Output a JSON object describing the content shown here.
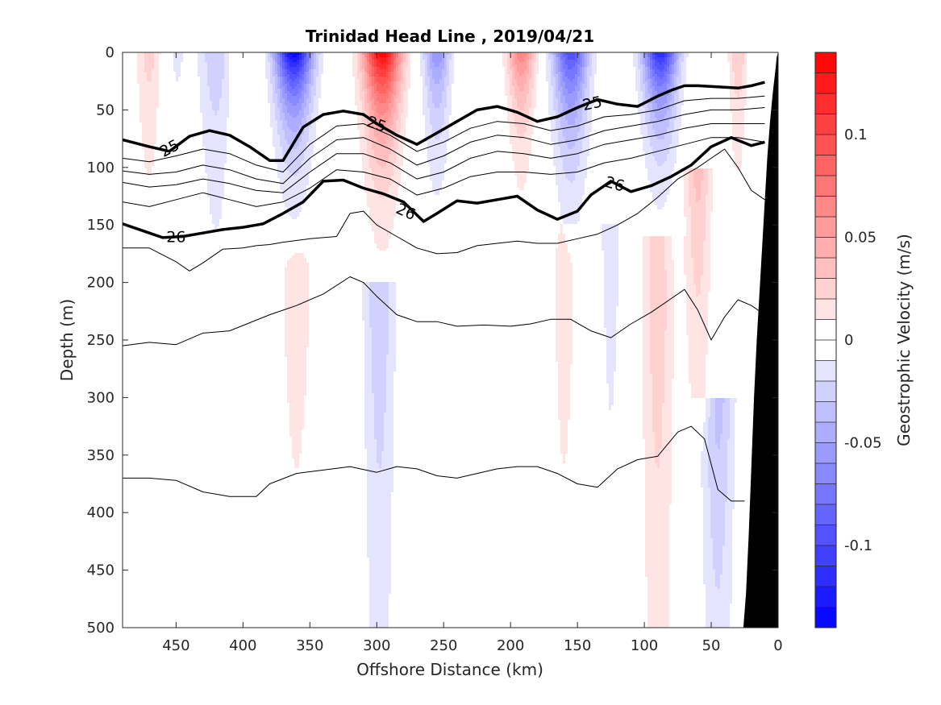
{
  "chart_data": {
    "type": "heatmap",
    "title": "Trinidad Head Line , 2019/04/21",
    "xlabel": "Offshore Distance (km)",
    "ylabel": "Depth (m)",
    "colorbar_label": "Geostrophic Velocity (m/s)",
    "xlim": [
      490,
      0
    ],
    "ylim": [
      0,
      500
    ],
    "x_reversed": true,
    "y_reversed": true,
    "x_ticks": [
      450,
      400,
      350,
      300,
      250,
      200,
      150,
      100,
      50,
      0
    ],
    "y_ticks": [
      0,
      50,
      100,
      150,
      200,
      250,
      300,
      350,
      400,
      450,
      500
    ],
    "colorbar_ticks": [
      {
        "value": 0.1,
        "label": "0.1"
      },
      {
        "value": 0.05,
        "label": "0.05"
      },
      {
        "value": 0,
        "label": "0"
      },
      {
        "value": -0.05,
        "label": "-0.05"
      },
      {
        "value": -0.1,
        "label": "-0.1"
      }
    ],
    "colorbar_range": [
      -0.14,
      0.14
    ],
    "colorbar_levels": 28,
    "colors": {
      "positive": "#ff0000",
      "negative": "#0000ff",
      "zero": "#ffffff",
      "bathymetry": "#000000"
    },
    "velocity_bands": [
      {
        "x_km": 470,
        "width_km": 10,
        "amp": 0.025,
        "z_top": 0,
        "z_bot": 130,
        "decay": 120
      },
      {
        "x_km": 450,
        "width_km": 10,
        "amp": -0.012,
        "z_top": 0,
        "z_bot": 150,
        "decay": 150
      },
      {
        "x_km": 480,
        "width_km": 12,
        "amp": -0.008,
        "z_top": 150,
        "z_bot": 500,
        "decay": 600
      },
      {
        "x_km": 420,
        "width_km": 13,
        "amp": -0.03,
        "z_top": 0,
        "z_bot": 260,
        "decay": 140
      },
      {
        "x_km": 400,
        "width_km": 12,
        "amp": 0.012,
        "z_top": 0,
        "z_bot": 100,
        "decay": 100
      },
      {
        "x_km": 420,
        "width_km": 10,
        "amp": 0.008,
        "z_top": 200,
        "z_bot": 500,
        "decay": 600
      },
      {
        "x_km": 362,
        "width_km": 14,
        "amp": -0.14,
        "z_top": 0,
        "z_bot": 150,
        "decay": 55
      },
      {
        "x_km": 360,
        "width_km": 18,
        "amp": 0.015,
        "z_top": 160,
        "z_bot": 500,
        "decay": 500
      },
      {
        "x_km": 296,
        "width_km": 14,
        "amp": 0.14,
        "z_top": 0,
        "z_bot": 160,
        "decay": 65
      },
      {
        "x_km": 298,
        "width_km": 12,
        "amp": -0.03,
        "z_top": 200,
        "z_bot": 500,
        "decay": 400
      },
      {
        "x_km": 255,
        "width_km": 10,
        "amp": -0.06,
        "z_top": 0,
        "z_bot": 150,
        "decay": 70
      },
      {
        "x_km": 240,
        "width_km": 18,
        "amp": 0.008,
        "z_top": 150,
        "z_bot": 500,
        "decay": 600
      },
      {
        "x_km": 192,
        "width_km": 10,
        "amp": 0.07,
        "z_top": 0,
        "z_bot": 110,
        "decay": 60
      },
      {
        "x_km": 198,
        "width_km": 8,
        "amp": -0.01,
        "z_top": 150,
        "z_bot": 500,
        "decay": 400
      },
      {
        "x_km": 155,
        "width_km": 13,
        "amp": -0.1,
        "z_top": 0,
        "z_bot": 150,
        "decay": 70
      },
      {
        "x_km": 160,
        "width_km": 10,
        "amp": 0.02,
        "z_top": 150,
        "z_bot": 500,
        "decay": 300
      },
      {
        "x_km": 125,
        "width_km": 10,
        "amp": -0.015,
        "z_top": 150,
        "z_bot": 500,
        "decay": 400
      },
      {
        "x_km": 88,
        "width_km": 13,
        "amp": -0.12,
        "z_top": 0,
        "z_bot": 160,
        "decay": 55
      },
      {
        "x_km": 90,
        "width_km": 12,
        "amp": 0.03,
        "z_top": 160,
        "z_bot": 500,
        "decay": 500
      },
      {
        "x_km": 60,
        "width_km": 10,
        "amp": 0.035,
        "z_top": 100,
        "z_bot": 300,
        "decay": 200
      },
      {
        "x_km": 45,
        "width_km": 12,
        "amp": -0.035,
        "z_top": 300,
        "z_bot": 500,
        "decay": 300
      },
      {
        "x_km": 30,
        "width_km": 7,
        "amp": 0.03,
        "z_top": 0,
        "z_bot": 90,
        "decay": 100
      }
    ],
    "isopycnals": [
      {
        "x": [
          490,
          470,
          455,
          440,
          425,
          410,
          395,
          380,
          370,
          355,
          340,
          325,
          310,
          300,
          285,
          270,
          255,
          240,
          225,
          210,
          195,
          180,
          165,
          150,
          135,
          120,
          105,
          90,
          80,
          70,
          60,
          45,
          30,
          20,
          10
        ],
        "depth": [
          76,
          82,
          86,
          73,
          68,
          72,
          82,
          94,
          94,
          65,
          54,
          51,
          54,
          62,
          72,
          80,
          70,
          60,
          50,
          47,
          52,
          60,
          56,
          48,
          41,
          45,
          47,
          38,
          33,
          29,
          29,
          30,
          31,
          29,
          26
        ],
        "bold": true,
        "label": "25"
      },
      {
        "x": [
          490,
          470,
          450,
          430,
          410,
          390,
          370,
          350,
          330,
          310,
          290,
          270,
          250,
          230,
          210,
          190,
          170,
          150,
          130,
          110,
          90,
          70,
          50,
          30,
          10
        ],
        "depth": [
          92,
          95,
          90,
          84,
          88,
          98,
          104,
          80,
          64,
          62,
          72,
          86,
          78,
          66,
          60,
          62,
          68,
          64,
          56,
          54,
          50,
          42,
          40,
          40,
          38
        ],
        "bold": false,
        "label": ""
      },
      {
        "x": [
          490,
          470,
          450,
          430,
          410,
          390,
          370,
          350,
          330,
          310,
          290,
          270,
          250,
          230,
          210,
          190,
          170,
          150,
          130,
          110,
          90,
          70,
          50,
          30,
          10
        ],
        "depth": [
          103,
          106,
          104,
          98,
          102,
          110,
          114,
          92,
          76,
          74,
          84,
          98,
          90,
          78,
          72,
          74,
          80,
          76,
          68,
          64,
          60,
          54,
          50,
          50,
          48
        ],
        "bold": false,
        "label": ""
      },
      {
        "x": [
          490,
          470,
          450,
          430,
          410,
          390,
          370,
          350,
          330,
          310,
          290,
          270,
          250,
          230,
          210,
          190,
          170,
          150,
          130,
          110,
          90,
          70,
          50,
          30,
          10
        ],
        "depth": [
          113,
          117,
          115,
          110,
          114,
          120,
          122,
          104,
          88,
          88,
          96,
          110,
          104,
          92,
          86,
          88,
          92,
          88,
          80,
          76,
          72,
          66,
          62,
          62,
          62
        ],
        "bold": false,
        "label": ""
      },
      {
        "x": [
          490,
          470,
          450,
          430,
          410,
          390,
          370,
          350,
          330,
          310,
          290,
          270,
          250,
          230,
          210,
          190,
          170,
          150,
          130,
          110,
          90,
          70,
          50,
          30,
          10
        ],
        "depth": [
          130,
          134,
          128,
          122,
          128,
          134,
          130,
          118,
          102,
          104,
          110,
          124,
          118,
          108,
          104,
          104,
          106,
          104,
          96,
          92,
          86,
          80,
          74,
          74,
          78
        ],
        "bold": false,
        "label": ""
      },
      {
        "x": [
          490,
          475,
          460,
          445,
          430,
          415,
          400,
          385,
          370,
          355,
          340,
          325,
          310,
          295,
          280,
          265,
          255,
          240,
          225,
          210,
          195,
          180,
          165,
          150,
          140,
          125,
          110,
          95,
          80,
          65,
          50,
          35,
          20,
          10
        ],
        "depth": [
          149,
          155,
          161,
          160,
          157,
          154,
          152,
          149,
          140,
          130,
          112,
          111,
          118,
          123,
          130,
          147,
          140,
          129,
          131,
          128,
          125,
          137,
          145,
          138,
          124,
          112,
          121,
          116,
          108,
          98,
          82,
          74,
          81,
          78
        ],
        "bold": true,
        "label": "26"
      },
      {
        "x": [
          490,
          470,
          450,
          440,
          430,
          415,
          400,
          390,
          380,
          370,
          350,
          330,
          320,
          310,
          300,
          285,
          270,
          255,
          240,
          225,
          210,
          195,
          180,
          165,
          150,
          135,
          120,
          105,
          90,
          75,
          60,
          50,
          40,
          30,
          20,
          10
        ],
        "depth": [
          170,
          170,
          182,
          190,
          183,
          171,
          170,
          168,
          167,
          165,
          162,
          160,
          140,
          138,
          150,
          160,
          170,
          175,
          174,
          168,
          166,
          164,
          166,
          166,
          162,
          158,
          150,
          140,
          126,
          110,
          100,
          92,
          84,
          100,
          120,
          128
        ],
        "bold": false,
        "label": ""
      },
      {
        "x": [
          490,
          470,
          450,
          430,
          410,
          395,
          380,
          360,
          340,
          320,
          310,
          300,
          285,
          270,
          255,
          240,
          220,
          200,
          185,
          170,
          155,
          140,
          125,
          110,
          95,
          80,
          70,
          60,
          50,
          40,
          30,
          20,
          10
        ],
        "depth": [
          255,
          252,
          254,
          244,
          242,
          235,
          228,
          220,
          210,
          195,
          200,
          212,
          228,
          234,
          234,
          238,
          237,
          238,
          236,
          232,
          232,
          242,
          248,
          236,
          226,
          214,
          206,
          224,
          250,
          230,
          215,
          220,
          228
        ],
        "bold": false,
        "label": ""
      },
      {
        "x": [
          490,
          470,
          450,
          430,
          410,
          390,
          380,
          360,
          340,
          320,
          300,
          285,
          270,
          255,
          240,
          225,
          210,
          195,
          180,
          165,
          150,
          135,
          120,
          105,
          90,
          75,
          65,
          55,
          45,
          35,
          25
        ],
        "depth": [
          370,
          370,
          372,
          382,
          386,
          386,
          375,
          366,
          363,
          360,
          365,
          360,
          362,
          368,
          370,
          366,
          362,
          360,
          360,
          366,
          375,
          378,
          362,
          354,
          351,
          330,
          325,
          336,
          380,
          390,
          390
        ],
        "bold": false,
        "label": ""
      }
    ],
    "contour_labels": [
      {
        "text": "25",
        "x_km": 455,
        "depth": 83,
        "angle": -28
      },
      {
        "text": "25",
        "x_km": 300,
        "depth": 62,
        "angle": 20
      },
      {
        "text": "25",
        "x_km": 139,
        "depth": 44,
        "angle": -12
      },
      {
        "text": "26",
        "x_km": 450,
        "depth": 160,
        "angle": 0
      },
      {
        "text": "26",
        "x_km": 278,
        "depth": 138,
        "angle": 24
      },
      {
        "text": "26",
        "x_km": 122,
        "depth": 114,
        "angle": 16
      }
    ],
    "bathymetry": {
      "x": [
        26,
        24,
        22,
        20,
        18,
        16,
        14,
        12,
        10,
        8,
        6,
        4,
        2,
        1
      ],
      "depth": [
        500,
        470,
        420,
        360,
        300,
        250,
        210,
        170,
        130,
        90,
        60,
        35,
        15,
        4
      ]
    }
  }
}
